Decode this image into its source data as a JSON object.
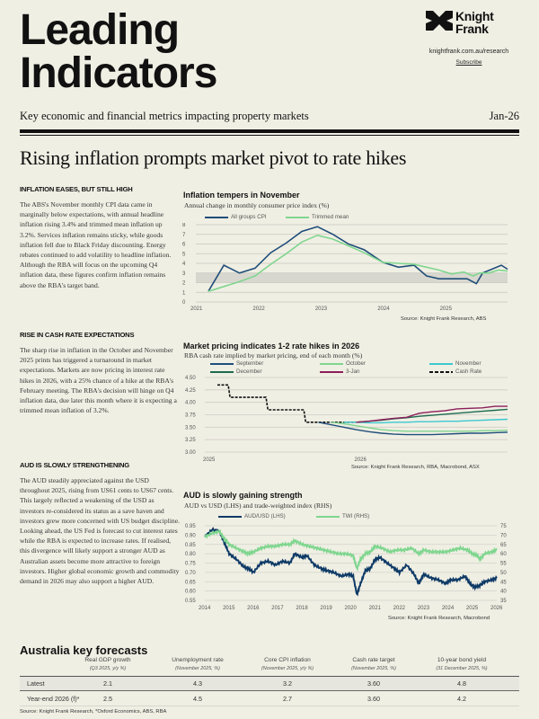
{
  "header": {
    "title_line1": "Leading",
    "title_line2": "Indicators",
    "brand_line1": "Knight",
    "brand_line2": "Frank",
    "url": "knightfrank.com.au/research",
    "subscribe": "Subscribe",
    "subtitle": "Key economic and financial metrics impacting property markets",
    "date": "Jan-26"
  },
  "headline": "Rising inflation prompts market pivot to rate hikes",
  "sections": [
    {
      "heading": "INFLATION EASES, BUT STILL HIGH",
      "body": "The ABS's November monthly CPI data came in marginally below expectations, with annual headline inflation rising 3.4% and trimmed mean inflation up 3.2%. Services inflation remains sticky, while goods inflation fell due to Black Friday discounting. Energy rebates continued to add volatility to headline inflation. Although the RBA will focus on the upcoming Q4 inflation data, these figures confirm inflation remains above the RBA's target band."
    },
    {
      "heading": "RISE IN CASH RATE EXPECTATIONS",
      "body": "The sharp rise in inflation in the October and November 2025 prints has triggered a turnaround in market expectations. Markets are now pricing in interest rate hikes in 2026, with a 25% chance of a hike at the RBA's February meeting. The RBA's decision will hinge on Q4 inflation data, due later this month where it is expecting a trimmed mean inflation of 3.2%."
    },
    {
      "heading": "AUD IS SLOWLY STRENGTHENING",
      "body": "The AUD steadily appreciated against the USD throughout 2025, rising from US61 cents to US67 cents. This largely reflected a weakening of the USD as investors re-considered its status as a save haven and investors grew more concerned with US budget discipline. Looking ahead, the US Fed is forecast to cut interest rates while the RBA is expected to increase rates. If realised, this divergence will likely support a stronger AUD as Australian assets become more attractive to foreign investors. Higher global economic growth and commodity demand in 2026 may also support a higher AUD."
    }
  ],
  "chart_data": [
    {
      "type": "line",
      "title": "Inflation tempers in November",
      "subtitle": "Annual change in monthly consumer price index (%)",
      "source": "Source: Knight Frank Research, ABS",
      "x_ticks": [
        "2021",
        "2022",
        "2023",
        "2024",
        "2025"
      ],
      "y_ticks": [
        "0",
        "1",
        "2",
        "3",
        "4",
        "5",
        "6",
        "7",
        "8"
      ],
      "ylim": [
        0,
        8
      ],
      "xlim": [
        2021.0,
        2026.0
      ],
      "target_band": [
        2,
        3
      ],
      "series": [
        {
          "name": "All groups CPI",
          "color": "#1f4e79",
          "x": [
            2021.2,
            2021.45,
            2021.7,
            2021.95,
            2022.2,
            2022.45,
            2022.7,
            2022.95,
            2023.2,
            2023.45,
            2023.7,
            2024.0,
            2024.25,
            2024.5,
            2024.7,
            2024.9,
            2025.1,
            2025.35,
            2025.5,
            2025.6,
            2025.75,
            2025.9,
            2026.0
          ],
          "values": [
            1.1,
            3.8,
            3.0,
            3.5,
            5.1,
            6.1,
            7.3,
            7.8,
            7.0,
            6.0,
            5.4,
            4.1,
            3.6,
            3.8,
            2.7,
            2.4,
            2.4,
            2.4,
            1.9,
            3.0,
            3.4,
            3.8,
            3.4
          ]
        },
        {
          "name": "Trimmed mean",
          "color": "#7fd68f",
          "x": [
            2021.2,
            2021.45,
            2021.7,
            2021.95,
            2022.2,
            2022.45,
            2022.7,
            2022.95,
            2023.2,
            2023.45,
            2023.7,
            2024.0,
            2024.25,
            2024.5,
            2024.7,
            2024.9,
            2025.1,
            2025.3,
            2025.45,
            2025.55,
            2025.7,
            2025.85,
            2026.0
          ],
          "values": [
            1.1,
            1.6,
            2.1,
            2.7,
            3.9,
            5.0,
            6.2,
            6.9,
            6.5,
            5.8,
            5.1,
            4.1,
            4.0,
            3.9,
            3.6,
            3.3,
            2.9,
            3.1,
            2.7,
            3.0,
            3.0,
            3.3,
            3.2
          ]
        }
      ]
    },
    {
      "type": "line",
      "title": "Market pricing indicates 1-2 rate hikes in 2026",
      "subtitle": "RBA cash rate implied by market pricing, end of each month (%)",
      "source": "Source: Knight Frank Research, RBA, Macrobond, ASX",
      "x_ticks": [
        "2025",
        "2026"
      ],
      "y_ticks": [
        "3.00",
        "3.25",
        "3.50",
        "3.75",
        "4.00",
        "4.25",
        "4.50"
      ],
      "ylim": [
        3.0,
        4.5
      ],
      "xlim": [
        0,
        24
      ],
      "series": [
        {
          "name": "Cash Rate",
          "color": "#111111",
          "dashed": true,
          "x": [
            1,
            2,
            3,
            4,
            5,
            6,
            7,
            8,
            9,
            10,
            11,
            12
          ],
          "values": [
            4.35,
            4.1,
            4.1,
            4.1,
            3.85,
            3.85,
            3.85,
            3.6,
            3.6,
            3.6,
            3.6,
            3.6
          ]
        },
        {
          "name": "September",
          "color": "#1f4e79",
          "x": [
            9,
            10,
            11,
            12,
            13,
            14,
            15,
            16,
            17,
            18,
            19,
            20,
            21,
            22,
            23,
            24
          ],
          "values": [
            3.6,
            3.55,
            3.5,
            3.45,
            3.41,
            3.38,
            3.36,
            3.35,
            3.35,
            3.35,
            3.36,
            3.37,
            3.38,
            3.38,
            3.39,
            3.4
          ]
        },
        {
          "name": "October",
          "color": "#7fd68f",
          "x": [
            10,
            11,
            12,
            13,
            14,
            15,
            16,
            17,
            18,
            19,
            20,
            21,
            22,
            23,
            24
          ],
          "values": [
            3.6,
            3.57,
            3.53,
            3.49,
            3.45,
            3.43,
            3.42,
            3.42,
            3.42,
            3.42,
            3.42,
            3.42,
            3.43,
            3.43,
            3.44
          ]
        },
        {
          "name": "November",
          "color": "#3cc8d0",
          "x": [
            11,
            12,
            13,
            14,
            15,
            16,
            17,
            18,
            19,
            20,
            21,
            22,
            23,
            24
          ],
          "values": [
            3.6,
            3.6,
            3.59,
            3.59,
            3.6,
            3.6,
            3.61,
            3.61,
            3.62,
            3.62,
            3.63,
            3.64,
            3.65,
            3.66
          ]
        },
        {
          "name": "December",
          "color": "#1e6b50",
          "x": [
            12,
            13,
            14,
            15,
            16,
            17,
            18,
            19,
            20,
            21,
            22,
            23,
            24
          ],
          "values": [
            3.6,
            3.62,
            3.64,
            3.67,
            3.69,
            3.72,
            3.74,
            3.76,
            3.78,
            3.8,
            3.82,
            3.84,
            3.86
          ]
        },
        {
          "name": "3-Jan",
          "color": "#8b1e5a",
          "x": [
            12,
            13,
            14,
            15,
            16,
            17,
            18,
            19,
            20,
            21,
            22,
            23,
            24
          ],
          "values": [
            3.6,
            3.62,
            3.65,
            3.68,
            3.7,
            3.78,
            3.81,
            3.83,
            3.87,
            3.88,
            3.89,
            3.92,
            3.92
          ]
        }
      ]
    },
    {
      "type": "line",
      "title": "AUD is slowly gaining strength",
      "subtitle": "AUD vs USD (LHS) and trade-weighted index (RHS)",
      "source": "Source: Knight Frank Research, Macrobond",
      "x_ticks": [
        "2014",
        "2015",
        "2016",
        "2017",
        "2018",
        "2019",
        "2020",
        "2021",
        "2022",
        "2023",
        "2024",
        "2025",
        "2026"
      ],
      "y_ticks_left": [
        "0.55",
        "0.60",
        "0.65",
        "0.70",
        "0.75",
        "0.80",
        "0.85",
        "0.90",
        "0.95"
      ],
      "y_ticks_right": [
        "35",
        "40",
        "45",
        "50",
        "55",
        "60",
        "65",
        "70",
        "75"
      ],
      "ylim_left": [
        0.55,
        0.95
      ],
      "ylim_right": [
        35,
        75
      ],
      "xlim": [
        2014,
        2026
      ],
      "series": [
        {
          "name": "AUD/USD (LHS)",
          "axis": "left",
          "color": "#0e3a66",
          "x": [
            2014.0,
            2014.3,
            2014.6,
            2014.8,
            2015.0,
            2015.3,
            2015.6,
            2015.8,
            2016.0,
            2016.3,
            2016.6,
            2016.9,
            2017.2,
            2017.5,
            2017.7,
            2018.0,
            2018.2,
            2018.5,
            2018.8,
            2019.0,
            2019.3,
            2019.6,
            2019.9,
            2020.1,
            2020.25,
            2020.4,
            2020.6,
            2020.8,
            2021.0,
            2021.2,
            2021.5,
            2021.8,
            2022.0,
            2022.3,
            2022.6,
            2022.8,
            2023.0,
            2023.3,
            2023.6,
            2023.9,
            2024.1,
            2024.4,
            2024.7,
            2024.9,
            2025.1,
            2025.3,
            2025.5,
            2025.8,
            2026.0
          ],
          "values": [
            0.89,
            0.93,
            0.92,
            0.86,
            0.8,
            0.77,
            0.73,
            0.72,
            0.7,
            0.75,
            0.76,
            0.74,
            0.76,
            0.75,
            0.8,
            0.78,
            0.79,
            0.74,
            0.72,
            0.71,
            0.7,
            0.68,
            0.69,
            0.68,
            0.58,
            0.64,
            0.71,
            0.72,
            0.77,
            0.78,
            0.75,
            0.72,
            0.7,
            0.74,
            0.69,
            0.64,
            0.69,
            0.67,
            0.66,
            0.64,
            0.66,
            0.66,
            0.68,
            0.64,
            0.62,
            0.63,
            0.65,
            0.66,
            0.67
          ]
        },
        {
          "name": "TWI (RHS)",
          "axis": "right",
          "color": "#7fd68f",
          "x": [
            2014.0,
            2014.3,
            2014.6,
            2014.8,
            2015.0,
            2015.3,
            2015.6,
            2015.8,
            2016.0,
            2016.3,
            2016.6,
            2016.9,
            2017.2,
            2017.5,
            2017.7,
            2018.0,
            2018.3,
            2018.6,
            2018.9,
            2019.2,
            2019.5,
            2019.8,
            2020.1,
            2020.25,
            2020.4,
            2020.6,
            2020.8,
            2021.0,
            2021.3,
            2021.6,
            2021.9,
            2022.2,
            2022.5,
            2022.8,
            2023.0,
            2023.3,
            2023.6,
            2023.9,
            2024.2,
            2024.5,
            2024.8,
            2025.0,
            2025.2,
            2025.3,
            2025.5,
            2025.8,
            2026.0
          ],
          "values": [
            69,
            71,
            72,
            68,
            65,
            63,
            61,
            60,
            61,
            63,
            64,
            64,
            65,
            65,
            67,
            65,
            64,
            63,
            62,
            61,
            60,
            60,
            59,
            52,
            57,
            60,
            61,
            64,
            63,
            61,
            62,
            62,
            63,
            60,
            62,
            61,
            61,
            61,
            62,
            63,
            62,
            60,
            59,
            57,
            60,
            61,
            62
          ]
        }
      ]
    }
  ],
  "charts_text": {
    "inflation_legend": [
      "All groups CPI",
      "Trimmed mean"
    ],
    "pricing_legend": [
      "September",
      "October",
      "November",
      "December",
      "3-Jan",
      "Cash Rate"
    ],
    "aud_legend": [
      "AUD/USD (LHS)",
      "TWI (RHS)"
    ]
  },
  "forecasts": {
    "title": "Australia key forecasts",
    "columns": [
      {
        "label": "Real GDP growth",
        "sub": "(Q3 2025, y/y %)"
      },
      {
        "label": "Unemployment rate",
        "sub": "(November 2025, %)"
      },
      {
        "label": "Core CPI inflation",
        "sub": "(November 2025, y/y %)"
      },
      {
        "label": "Cash rate target",
        "sub": "(November 2025, %)"
      },
      {
        "label": "10-year bond yield",
        "sub": "(31 December 2025, %)"
      }
    ],
    "rows": [
      {
        "label": "Latest",
        "values": [
          "2.1",
          "4.3",
          "3.2",
          "3.60",
          "4.8"
        ]
      },
      {
        "label": "Year-end 2026 (f)*",
        "values": [
          "2.5",
          "4.5",
          "2.7",
          "3.60",
          "4.2"
        ]
      }
    ],
    "source": "Source: Knight Frank Research, *Oxford Economics, ABS, RBA"
  }
}
